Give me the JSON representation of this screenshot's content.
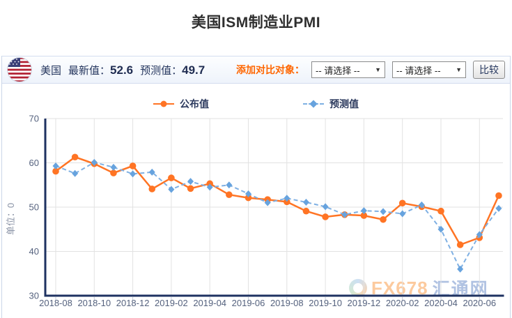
{
  "title": "美国ISM制造业PMI",
  "toolbar": {
    "country": "美国",
    "latest_label": "最新值：",
    "latest_value": "52.6",
    "forecast_label": "预测值：",
    "forecast_value": "49.7",
    "compare_label": "添加对比对象：",
    "select1_value": "-- 请选择 --",
    "select2_value": "-- 请选择 --",
    "dropdown_arrow": "▼",
    "compare_button": "比较"
  },
  "legend": [
    {
      "label": "公布值",
      "color": "#ff7424",
      "marker": "circle"
    },
    {
      "label": "预测值",
      "color": "#7fb0e3",
      "marker": "diamond"
    }
  ],
  "watermark": {
    "text_fx": "FX678",
    "text_cn": "汇通网"
  },
  "colors": {
    "accent_orange": "#ff6600",
    "navy_text": "#25365e",
    "axis": "#1e3261",
    "grid": "#e2e2e2",
    "tick_text": "#55627e",
    "ylabel_text": "#8a93a6"
  },
  "chart_data": {
    "type": "line",
    "title": "美国ISM制造业PMI",
    "ylabel": "单位：0",
    "ylim": [
      30,
      70
    ],
    "yticks": [
      70,
      60,
      50,
      40,
      30
    ],
    "grid": true,
    "legend_position": "top",
    "x": [
      "2018-08",
      "2018-09",
      "2018-10",
      "2018-11",
      "2018-12",
      "2019-01",
      "2019-02",
      "2019-03",
      "2019-04",
      "2019-05",
      "2019-06",
      "2019-07",
      "2019-08",
      "2019-09",
      "2019-10",
      "2019-11",
      "2019-12",
      "2020-01",
      "2020-02",
      "2020-03",
      "2020-04",
      "2020-05",
      "2020-06",
      "2020-07"
    ],
    "xtick_labels": [
      "2018-08",
      "2018-10",
      "2018-12",
      "2019-02",
      "2019-04",
      "2019-06",
      "2019-08",
      "2019-10",
      "2019-12",
      "2020-02",
      "2020-04",
      "2020-06"
    ],
    "series": [
      {
        "name": "公布值",
        "style": "solid",
        "marker": "circle",
        "color": "#ff7424",
        "values": [
          58.1,
          61.3,
          59.8,
          57.7,
          59.3,
          54.1,
          56.6,
          54.2,
          55.3,
          52.8,
          52.1,
          51.7,
          51.2,
          49.1,
          47.8,
          48.3,
          48.1,
          47.2,
          50.9,
          50.1,
          49.1,
          41.5,
          43.1,
          52.6
        ]
      },
      {
        "name": "预测值",
        "style": "dashed",
        "marker": "diamond",
        "color": "#7fb0e3",
        "marker_color": "#67a3de",
        "values": [
          59.3,
          57.6,
          60.1,
          59.0,
          57.5,
          57.9,
          54.0,
          55.8,
          54.5,
          55.0,
          53.0,
          51.0,
          52.0,
          51.1,
          50.1,
          48.3,
          49.2,
          49.0,
          48.5,
          50.5,
          45.0,
          36.0,
          43.8,
          49.7
        ]
      }
    ]
  }
}
